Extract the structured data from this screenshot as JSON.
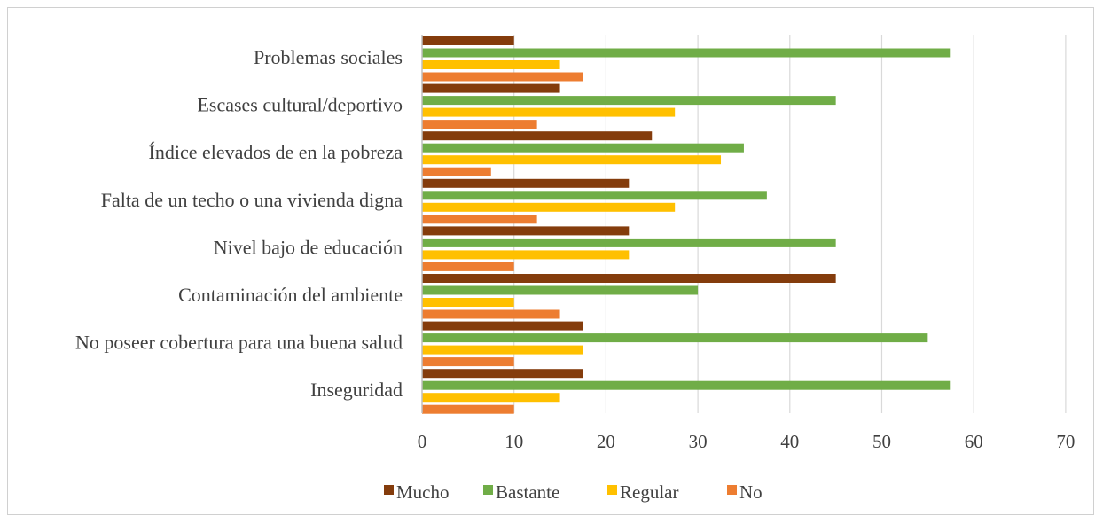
{
  "chart_data": {
    "type": "bar",
    "orientation": "horizontal",
    "title": "",
    "xlabel": "",
    "ylabel": "",
    "categories": [
      "Problemas sociales",
      "Escases cultural/deportivo",
      "Índice elevados de en la pobreza",
      "Falta de un techo o una vivienda digna",
      "Nivel bajo de educación",
      "Contaminación del ambiente",
      "No poseer cobertura para una buena salud",
      "Inseguridad"
    ],
    "series": [
      {
        "name": "Mucho",
        "color": "#843c0c",
        "values": [
          10,
          15,
          25,
          22.5,
          22.5,
          45,
          17.5,
          17.5
        ]
      },
      {
        "name": "Bastante",
        "color": "#70ad47",
        "values": [
          57.5,
          45,
          35,
          37.5,
          45,
          30,
          55,
          57.5
        ]
      },
      {
        "name": "Regular",
        "color": "#ffc000",
        "values": [
          15,
          27.5,
          32.5,
          27.5,
          22.5,
          10,
          17.5,
          15
        ]
      },
      {
        "name": "No",
        "color": "#ed7d31",
        "values": [
          17.5,
          12.5,
          7.5,
          12.5,
          10,
          15,
          10,
          10
        ]
      }
    ],
    "xlim": [
      0,
      70
    ],
    "xticks": [
      "0",
      "10",
      "20",
      "30",
      "40",
      "50",
      "60",
      "70"
    ],
    "grid": true,
    "legend_position": "bottom"
  }
}
